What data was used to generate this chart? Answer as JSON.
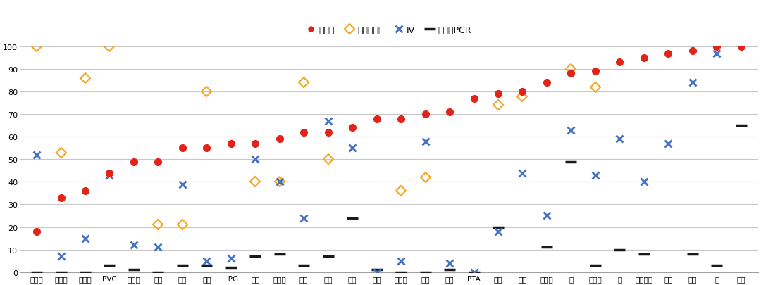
{
  "categories": [
    "工业硅",
    "聚丙烯",
    "碳酸锂",
    "PVC",
    "螺纹钢",
    "玉米",
    "尿素",
    "棉花",
    "LPG",
    "菜油",
    "乙二醇",
    "豆油",
    "菜粕",
    "纯碱",
    "甲醇",
    "棕榈油",
    "豆粕",
    "塑料",
    "PTA",
    "原油",
    "白糖",
    "铁矿石",
    "锌",
    "苯乙烯",
    "铝",
    "合成橡胶",
    "橡胶",
    "黄金",
    "铜",
    "白银"
  ],
  "close_price": [
    18,
    33,
    36,
    44,
    49,
    49,
    55,
    55,
    57,
    57,
    59,
    62,
    62,
    64,
    68,
    68,
    70,
    71,
    77,
    79,
    80,
    84,
    88,
    89,
    93,
    95,
    97,
    98,
    100,
    100
  ],
  "option_volume": [
    100,
    53,
    86,
    100,
    null,
    21,
    21,
    80,
    null,
    40,
    40,
    84,
    50,
    null,
    null,
    36,
    42,
    null,
    null,
    74,
    78,
    null,
    90,
    82,
    null,
    null,
    null,
    null,
    null,
    null
  ],
  "iv": [
    52,
    7,
    15,
    43,
    12,
    11,
    39,
    5,
    6,
    50,
    40,
    24,
    67,
    55,
    0,
    5,
    58,
    4,
    0,
    18,
    44,
    25,
    63,
    43,
    59,
    40,
    57,
    84,
    97,
    null
  ],
  "pcr": [
    0,
    0,
    0,
    3,
    1,
    0,
    3,
    3,
    2,
    7,
    8,
    3,
    7,
    24,
    1,
    0,
    0,
    1,
    0,
    20,
    null,
    11,
    49,
    3,
    10,
    8,
    null,
    8,
    3,
    65
  ],
  "legend_labels": [
    "收盘价",
    "期权成交量",
    "IV",
    "成交量PCR"
  ],
  "close_color": "#e2231a",
  "volume_color": "#f5a623",
  "iv_color": "#4472c4",
  "pcr_color": "#1a1a1a",
  "bg_color": "#ffffff",
  "grid_color": "#c8c8c8",
  "ylim": [
    0,
    100
  ],
  "yticks": [
    0,
    10,
    20,
    30,
    40,
    50,
    60,
    70,
    80,
    90,
    100
  ],
  "figwidth": 10.8,
  "figheight": 4.06,
  "dpi": 100
}
